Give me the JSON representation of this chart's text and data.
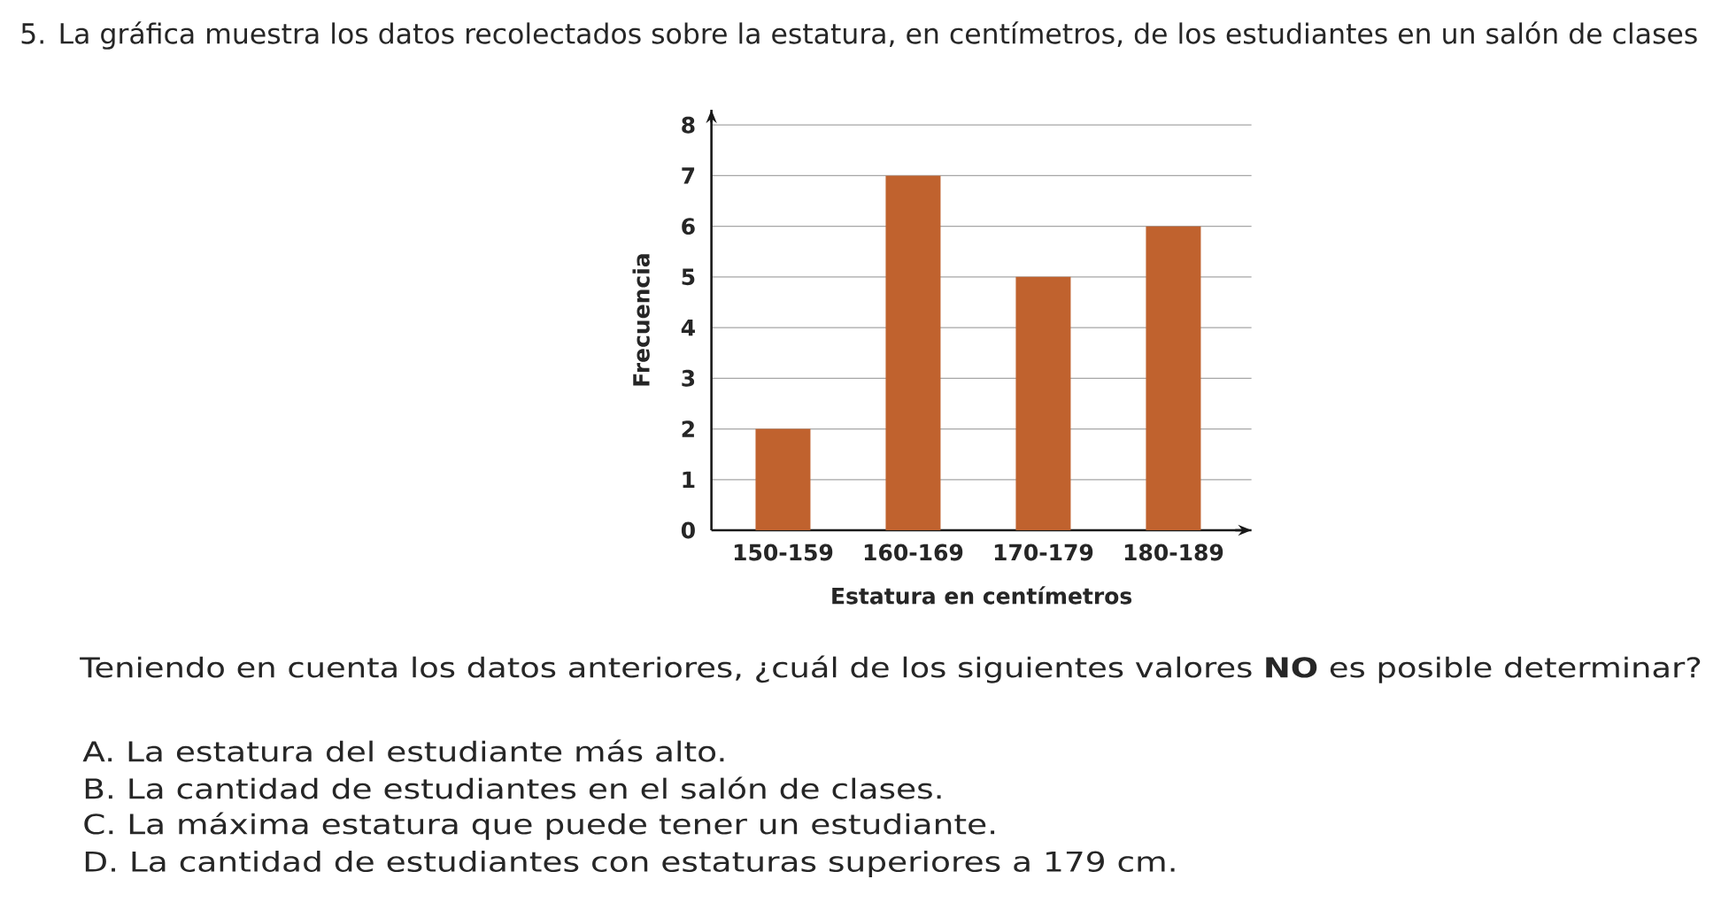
{
  "chart_data": {
    "type": "bar",
    "title": "5. La gráfica muestra los datos recolectados sobre la estatura, en centímetros, de los estudiantes en un salón de clases",
    "xlabel": "Estatura en centímetros",
    "ylabel": "Frecuencia",
    "categories": [
      "150-159",
      "160-169",
      "170-179",
      "180-189"
    ],
    "values": [
      2,
      7,
      5,
      6
    ],
    "color": "#c0622e",
    "ylim": [
      0,
      8.3
    ],
    "yticks": [
      0,
      1,
      2,
      3,
      4,
      5,
      6,
      7,
      8
    ],
    "grid": "y",
    "annotations": [
      "Teniendo en cuenta los datos anteriores, ¿cuál de los siguientes valores **NO** es posible determinar?",
      "A.  La estatura del estudiante más alto.",
      "B.  La cantidad de estudiantes en el salón de clases.",
      "C.  La máxima estatura que puede tener un estudiante.",
      "D.  La cantidad de estudiantes con estaturas superiores a 179 cm."
    ]
  }
}
